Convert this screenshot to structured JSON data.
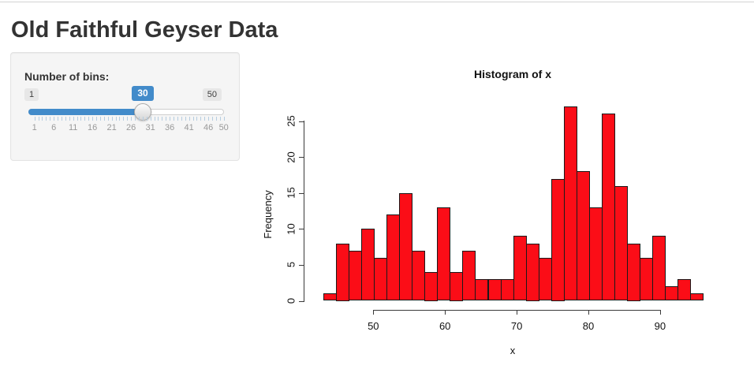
{
  "page": {
    "title": "Old Faithful Geyser Data"
  },
  "controls": {
    "label": "Number of bins:",
    "slider": {
      "min": 1,
      "max": 50,
      "value": 30,
      "min_label": "1",
      "max_label": "50",
      "value_label": "30",
      "grid_labels": [
        1,
        6,
        11,
        16,
        21,
        26,
        31,
        36,
        41,
        46,
        50
      ],
      "accent_color": "#428bca"
    }
  },
  "chart_data": {
    "type": "bar",
    "subtype": "histogram",
    "title": "Histogram of x",
    "xlabel": "x",
    "ylabel": "Frequency",
    "bin_start": 43,
    "bin_end": 96,
    "num_bins": 30,
    "counts": [
      1,
      8,
      7,
      10,
      6,
      12,
      15,
      7,
      4,
      13,
      4,
      7,
      3,
      3,
      3,
      9,
      8,
      6,
      17,
      27,
      18,
      13,
      26,
      16,
      8,
      6,
      9,
      2,
      3,
      1
    ],
    "x_ticks": [
      50,
      60,
      70,
      80,
      90
    ],
    "y_ticks": [
      0,
      5,
      10,
      15,
      20,
      25
    ],
    "ylim": [
      0,
      27
    ],
    "grid": false,
    "legend": false,
    "bar_color": "#FB0D17",
    "bar_border": "#1A1A1A"
  }
}
